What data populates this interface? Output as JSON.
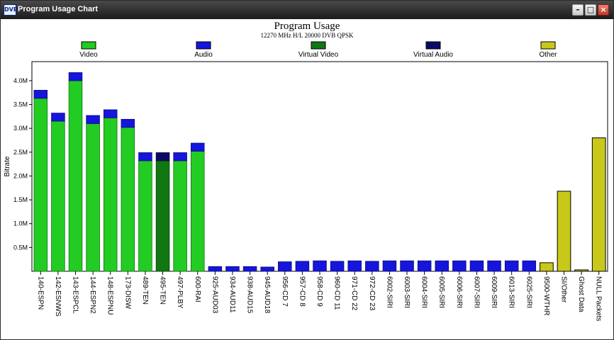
{
  "window": {
    "title": "Program Usage Chart",
    "icon_name": "dvb-app-icon",
    "controls": [
      "minimize-icon",
      "maximize-icon",
      "close-icon"
    ]
  },
  "chart_data": {
    "type": "bar",
    "stacked": true,
    "title": "Program Usage",
    "subtitle": "12270 MHz H/L 20000 DVB QPSK",
    "xlabel": "",
    "ylabel": "Bitrate",
    "ylim": [
      0,
      4.4
    ],
    "yticks": [
      "0.5M",
      "1.0M",
      "1.5M",
      "2.0M",
      "2.5M",
      "3.0M",
      "3.5M",
      "4.0M"
    ],
    "ytick_values": [
      0.5,
      1.0,
      1.5,
      2.0,
      2.5,
      3.0,
      3.5,
      4.0
    ],
    "grid": false,
    "legend_position": "top",
    "categories": [
      "140-ESPN",
      "142-ESNWS",
      "143-ESPCL",
      "144-ESPN2",
      "148-ESPNU",
      "173-DISW",
      "489-TEN",
      "495-TEN",
      "497-PLBY",
      "600-RAI",
      "925-AUD03",
      "934-AUD11",
      "938-AUD15",
      "945-AUD18",
      "956-CD 7",
      "957-CD 8",
      "958-CD 9",
      "960-CD 11",
      "971-CD 22",
      "972-CD 23",
      "6002-SIRI",
      "6003-SIRI",
      "6004-SIRI",
      "6005-SIRI",
      "6006-SIRI",
      "6007-SIRI",
      "6009-SIRI",
      "6013-SIRI",
      "6025-SIRI",
      "9500-WTHR",
      "SI/Other",
      "Ghost Data",
      "NULL Packets"
    ],
    "series": [
      {
        "name": "Video",
        "color": "#22cc22",
        "values": [
          3.63,
          3.15,
          4.0,
          3.1,
          3.22,
          3.02,
          2.32,
          0,
          2.32,
          2.52,
          0,
          0,
          0,
          0,
          0,
          0,
          0,
          0,
          0,
          0,
          0,
          0,
          0,
          0,
          0,
          0,
          0,
          0,
          0,
          0,
          0,
          0,
          0
        ]
      },
      {
        "name": "Audio",
        "color": "#1515dd",
        "values": [
          0.17,
          0.17,
          0.17,
          0.17,
          0.17,
          0.17,
          0.17,
          0,
          0.17,
          0.17,
          0.1,
          0.1,
          0.1,
          0.09,
          0.2,
          0.21,
          0.22,
          0.21,
          0.22,
          0.21,
          0.22,
          0.22,
          0.22,
          0.22,
          0.22,
          0.22,
          0.22,
          0.22,
          0.22,
          0,
          0,
          0,
          0
        ]
      },
      {
        "name": "Virtual Video",
        "color": "#117711",
        "values": [
          0,
          0,
          0,
          0,
          0,
          0,
          0,
          2.32,
          0,
          0,
          0,
          0,
          0,
          0,
          0,
          0,
          0,
          0,
          0,
          0,
          0,
          0,
          0,
          0,
          0,
          0,
          0,
          0,
          0,
          0,
          0,
          0,
          0
        ]
      },
      {
        "name": "Virtual Audio",
        "color": "#0b0b66",
        "values": [
          0,
          0,
          0,
          0,
          0,
          0,
          0,
          0.17,
          0,
          0,
          0,
          0,
          0,
          0,
          0,
          0,
          0,
          0,
          0,
          0,
          0,
          0,
          0,
          0,
          0,
          0,
          0,
          0,
          0,
          0,
          0,
          0,
          0
        ]
      },
      {
        "name": "Other",
        "color": "#c8c81a",
        "values": [
          0,
          0,
          0,
          0,
          0,
          0,
          0,
          0,
          0,
          0,
          0,
          0,
          0,
          0,
          0,
          0,
          0,
          0,
          0,
          0,
          0,
          0,
          0,
          0,
          0,
          0,
          0,
          0,
          0,
          0.18,
          1.68,
          0.03,
          2.8
        ]
      }
    ]
  }
}
